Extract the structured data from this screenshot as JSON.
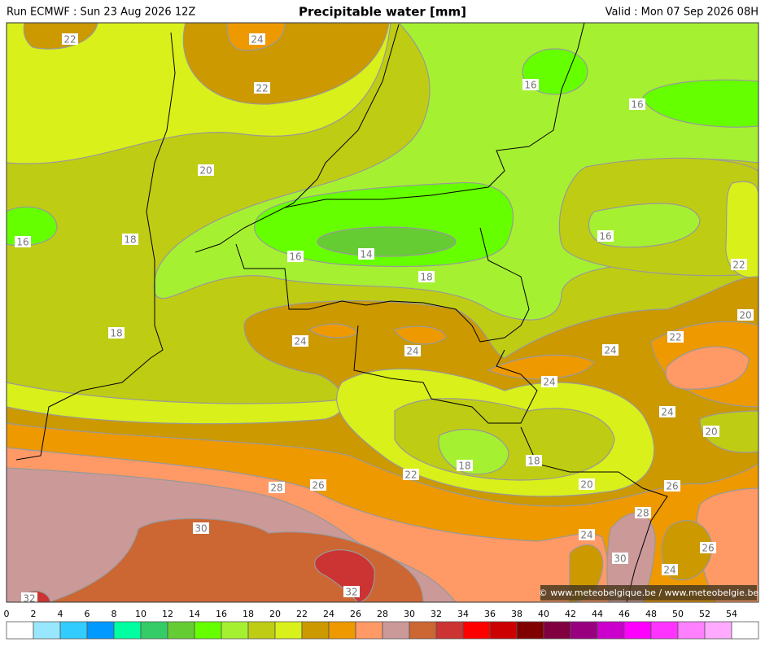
{
  "header": {
    "run": "Run ECMWF : Sun 23 Aug 2026 12Z",
    "title": "Precipitable water [mm]",
    "valid": "Valid : Mon 07 Sep 2026 08H"
  },
  "map": {
    "contour_labels": [
      22,
      24,
      22,
      16,
      16,
      20,
      16,
      18,
      16,
      16,
      14,
      18,
      22,
      20,
      18,
      24,
      22,
      24,
      24,
      24,
      24,
      20,
      18,
      18,
      22,
      20,
      28,
      26,
      26,
      28,
      30,
      24,
      26,
      30,
      24,
      32,
      32
    ]
  },
  "credit": "© www.meteobelgique.be / www.meteobelgie.be",
  "legend": {
    "levels": [
      0,
      2,
      4,
      6,
      8,
      10,
      12,
      14,
      16,
      18,
      20,
      22,
      24,
      26,
      28,
      30,
      32,
      34,
      36,
      38,
      40,
      42,
      44,
      46,
      48,
      50,
      52,
      54
    ],
    "colors": [
      "#ffffff",
      "#99e6ff",
      "#33ccff",
      "#0099ff",
      "#00ffa0",
      "#33cc66",
      "#66cc33",
      "#66ff00",
      "#a6f032",
      "#bfcc14",
      "#d9f01a",
      "#cc9900",
      "#ee9900",
      "#ff9966",
      "#cc9999",
      "#cc6633",
      "#cc3333",
      "#ff0000",
      "#cc0000",
      "#800000",
      "#800040",
      "#990080",
      "#cc00cc",
      "#ff00ff",
      "#ff33ff",
      "#ff80ff",
      "#ffaaff",
      "#ffffff"
    ]
  }
}
